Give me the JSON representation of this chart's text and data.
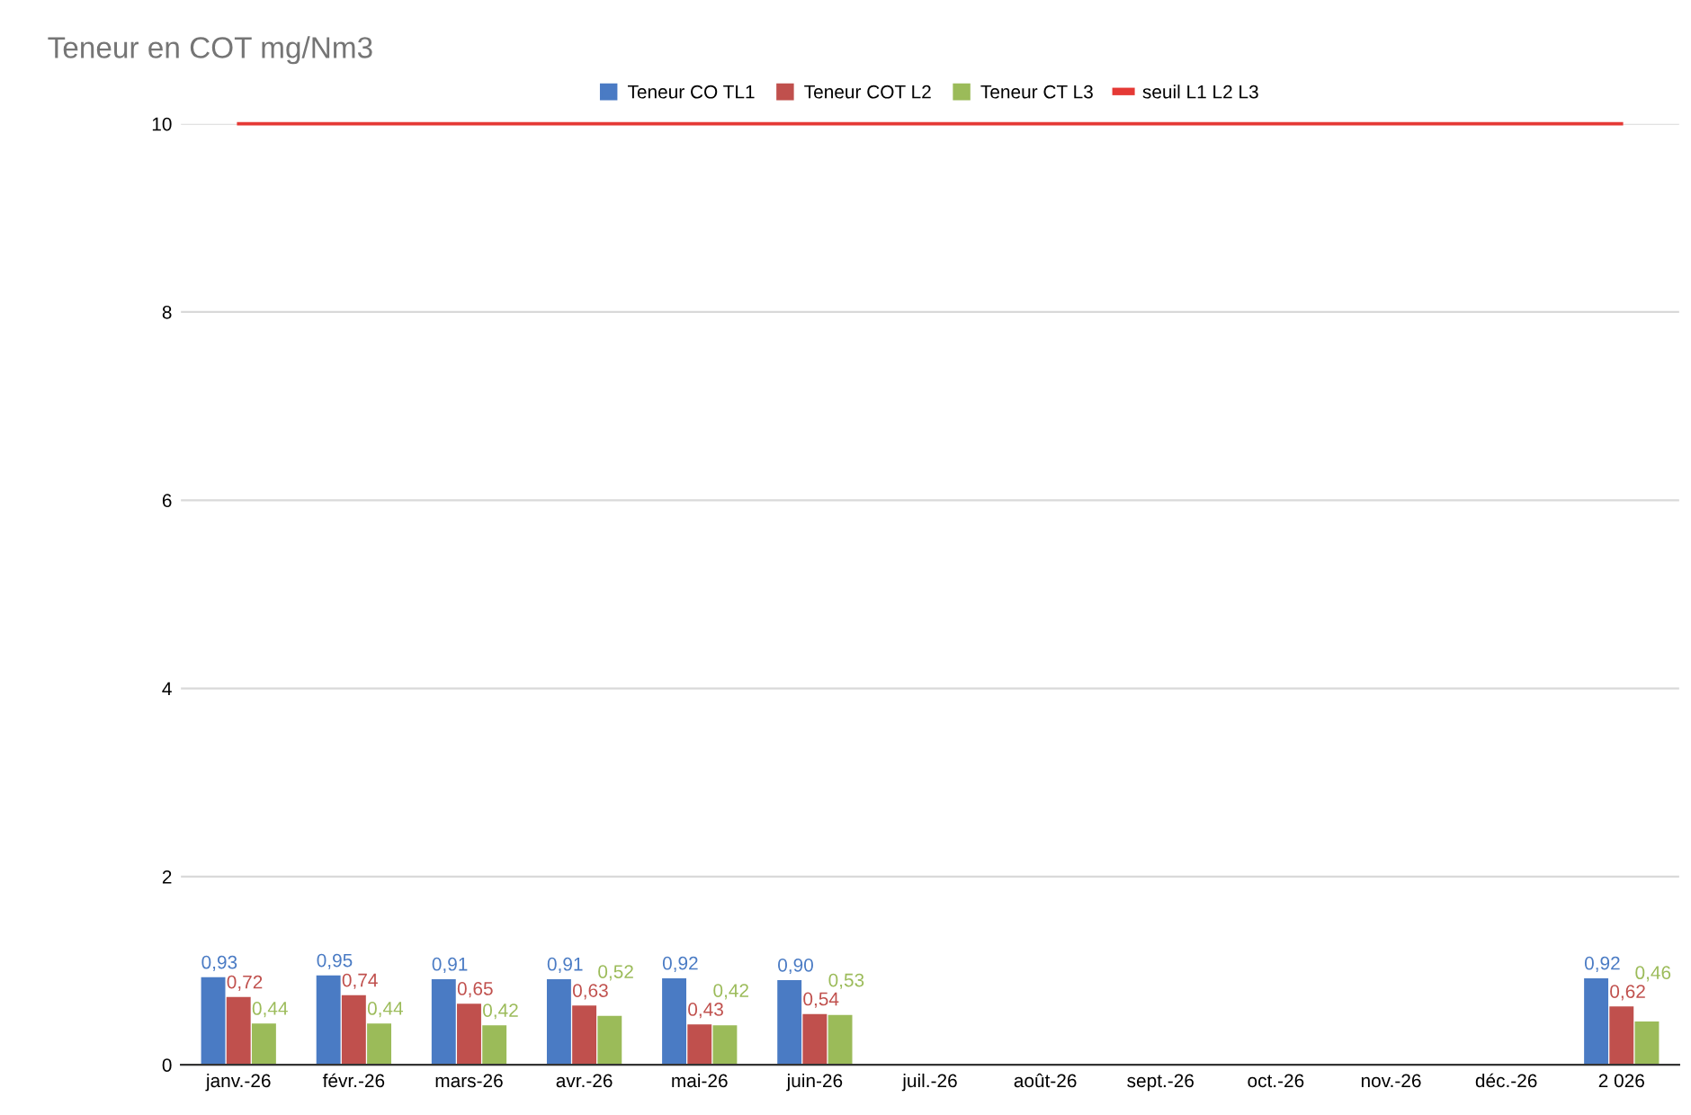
{
  "chart_data": {
    "type": "bar",
    "title": "Teneur en COT mg/Nm3",
    "categories": [
      "janv.-26",
      "févr.-26",
      "mars-26",
      "avr.-26",
      "mai-26",
      "juin-26",
      "juil.-26",
      "août-26",
      "sept.-26",
      "oct.-26",
      "nov.-26",
      "déc.-26",
      "2 026"
    ],
    "series": [
      {
        "name": "Teneur CO TL1",
        "color": "#4a7bc4",
        "values": [
          0.93,
          0.95,
          0.91,
          0.91,
          0.92,
          0.9,
          null,
          null,
          null,
          null,
          null,
          null,
          0.92
        ],
        "value_labels": [
          "0,93",
          "0,95",
          "0,91",
          "0,91",
          "0,92",
          "0,90",
          null,
          null,
          null,
          null,
          null,
          null,
          "0,92"
        ]
      },
      {
        "name": "Teneur COT L2",
        "color": "#c0504d",
        "values": [
          0.72,
          0.74,
          0.65,
          0.63,
          0.43,
          0.54,
          null,
          null,
          null,
          null,
          null,
          null,
          0.62
        ],
        "value_labels": [
          "0,72",
          "0,74",
          "0,65",
          "0,63",
          "0,43",
          "0,54",
          null,
          null,
          null,
          null,
          null,
          null,
          "0,62"
        ]
      },
      {
        "name": "Teneur CT L3",
        "color": "#9bbb59",
        "values": [
          0.44,
          0.44,
          0.42,
          0.52,
          0.42,
          0.53,
          null,
          null,
          null,
          null,
          null,
          null,
          0.46
        ],
        "value_labels": [
          "0,44",
          "0,44",
          "0,42",
          "0,52",
          "0,42",
          "0,53",
          null,
          null,
          null,
          null,
          null,
          null,
          "0,46"
        ]
      },
      {
        "name": "seuil L1 L2 L3",
        "type": "line",
        "color": "#e53935",
        "values": [
          10,
          10,
          10,
          10,
          10,
          10,
          10,
          10,
          10,
          10,
          10,
          10,
          10
        ]
      }
    ],
    "ylim": [
      0,
      10
    ],
    "yticks": [
      0,
      2,
      4,
      6,
      8,
      10
    ],
    "grid": "y",
    "legend": "top"
  }
}
